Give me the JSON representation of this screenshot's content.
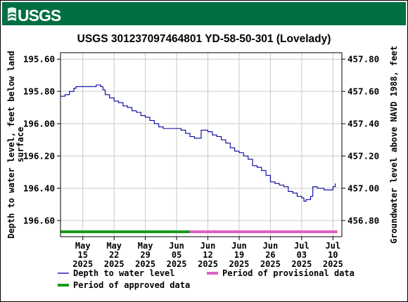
{
  "header": {
    "logo_text": "USGS",
    "banner_color": "#006f41"
  },
  "chart_data": {
    "type": "line",
    "title": "USGS 301237097464801 YD-58-50-301 (Lovelady)",
    "ylabel_left": "Depth to water level, feet below land surface",
    "ylabel_right": "Groundwater level above NAVD 1988, feet",
    "y_left": {
      "range": [
        195.56,
        196.7
      ],
      "reversed": true,
      "ticks": [
        "195.60",
        "195.80",
        "196.00",
        "196.20",
        "196.40",
        "196.60"
      ]
    },
    "y_right": {
      "range": [
        457.84,
        456.7
      ],
      "ticks": [
        "457.80",
        "457.60",
        "457.40",
        "457.20",
        "457.00",
        "456.80"
      ]
    },
    "x": {
      "range": [
        "2025-05-10",
        "2025-07-12"
      ],
      "ticks": [
        {
          "date": "2025-05-15",
          "label": [
            "May",
            "15",
            "2025"
          ]
        },
        {
          "date": "2025-05-22",
          "label": [
            "May",
            "22",
            "2025"
          ]
        },
        {
          "date": "2025-05-29",
          "label": [
            "May",
            "29",
            "2025"
          ]
        },
        {
          "date": "2025-06-05",
          "label": [
            "Jun",
            "05",
            "2025"
          ]
        },
        {
          "date": "2025-06-12",
          "label": [
            "Jun",
            "12",
            "2025"
          ]
        },
        {
          "date": "2025-06-19",
          "label": [
            "Jun",
            "19",
            "2025"
          ]
        },
        {
          "date": "2025-06-26",
          "label": [
            "Jun",
            "26",
            "2025"
          ]
        },
        {
          "date": "2025-07-03",
          "label": [
            "Jul",
            "03",
            "2025"
          ]
        },
        {
          "date": "2025-07-10",
          "label": [
            "Jul",
            "10",
            "2025"
          ]
        }
      ]
    },
    "grid": true,
    "series": [
      {
        "name": "Depth to water level",
        "color": "#00009b",
        "points": [
          [
            "2025-05-10",
            195.83
          ],
          [
            "2025-05-11",
            195.82
          ],
          [
            "2025-05-12",
            195.8
          ],
          [
            "2025-05-13",
            195.78
          ],
          [
            "2025-05-13T12:00",
            195.77
          ],
          [
            "2025-05-14",
            195.77
          ],
          [
            "2025-05-15",
            195.77
          ],
          [
            "2025-05-16",
            195.77
          ],
          [
            "2025-05-17",
            195.77
          ],
          [
            "2025-05-18",
            195.76
          ],
          [
            "2025-05-19",
            195.77
          ],
          [
            "2025-05-19T12:00",
            195.79
          ],
          [
            "2025-05-20",
            195.82
          ],
          [
            "2025-05-21",
            195.84
          ],
          [
            "2025-05-22",
            195.86
          ],
          [
            "2025-05-23",
            195.87
          ],
          [
            "2025-05-24",
            195.89
          ],
          [
            "2025-05-25",
            195.9
          ],
          [
            "2025-05-26",
            195.92
          ],
          [
            "2025-05-27",
            195.93
          ],
          [
            "2025-05-28",
            195.95
          ],
          [
            "2025-05-29",
            195.96
          ],
          [
            "2025-05-30",
            195.98
          ],
          [
            "2025-05-31",
            196.0
          ],
          [
            "2025-06-01",
            196.02
          ],
          [
            "2025-06-02",
            196.03
          ],
          [
            "2025-06-03",
            196.03
          ],
          [
            "2025-06-04",
            196.03
          ],
          [
            "2025-06-05",
            196.03
          ],
          [
            "2025-06-06",
            196.04
          ],
          [
            "2025-06-07",
            196.06
          ],
          [
            "2025-06-08",
            196.08
          ],
          [
            "2025-06-09",
            196.09
          ],
          [
            "2025-06-10",
            196.09
          ],
          [
            "2025-06-10T12:00",
            196.04
          ],
          [
            "2025-06-11",
            196.04
          ],
          [
            "2025-06-12",
            196.05
          ],
          [
            "2025-06-13",
            196.07
          ],
          [
            "2025-06-14",
            196.08
          ],
          [
            "2025-06-15",
            196.1
          ],
          [
            "2025-06-16",
            196.12
          ],
          [
            "2025-06-17",
            196.15
          ],
          [
            "2025-06-18",
            196.17
          ],
          [
            "2025-06-19",
            196.18
          ],
          [
            "2025-06-20",
            196.2
          ],
          [
            "2025-06-21",
            196.22
          ],
          [
            "2025-06-22",
            196.26
          ],
          [
            "2025-06-23",
            196.27
          ],
          [
            "2025-06-24",
            196.29
          ],
          [
            "2025-06-25",
            196.32
          ],
          [
            "2025-06-26",
            196.36
          ],
          [
            "2025-06-27",
            196.37
          ],
          [
            "2025-06-28",
            196.38
          ],
          [
            "2025-06-29",
            196.39
          ],
          [
            "2025-06-30",
            196.42
          ],
          [
            "2025-07-01",
            196.43
          ],
          [
            "2025-07-02",
            196.45
          ],
          [
            "2025-07-03",
            196.46
          ],
          [
            "2025-07-03T12:00",
            196.48
          ],
          [
            "2025-07-04",
            196.47
          ],
          [
            "2025-07-05",
            196.45
          ],
          [
            "2025-07-05T12:00",
            196.39
          ],
          [
            "2025-07-06",
            196.39
          ],
          [
            "2025-07-06T12:00",
            196.4
          ],
          [
            "2025-07-07",
            196.4
          ],
          [
            "2025-07-08",
            196.41
          ],
          [
            "2025-07-09",
            196.41
          ],
          [
            "2025-07-10",
            196.39
          ],
          [
            "2025-07-10T12:00",
            196.37
          ]
        ]
      }
    ],
    "periods": [
      {
        "name": "Period of approved data",
        "color": "#1a9a1a",
        "start": "2025-05-10",
        "end": "2025-06-08"
      },
      {
        "name": "Period of provisional data",
        "color": "#e060c0",
        "start": "2025-06-08",
        "end": "2025-07-11"
      }
    ],
    "legend": {
      "placement": "bottom",
      "items": [
        {
          "label": "Depth to water level",
          "color": "#00009b",
          "kind": "line"
        },
        {
          "label": "Period of provisional data",
          "color": "#e060c0",
          "kind": "bar"
        },
        {
          "label": "Period of approved data",
          "color": "#1a9a1a",
          "kind": "bar"
        }
      ]
    }
  }
}
